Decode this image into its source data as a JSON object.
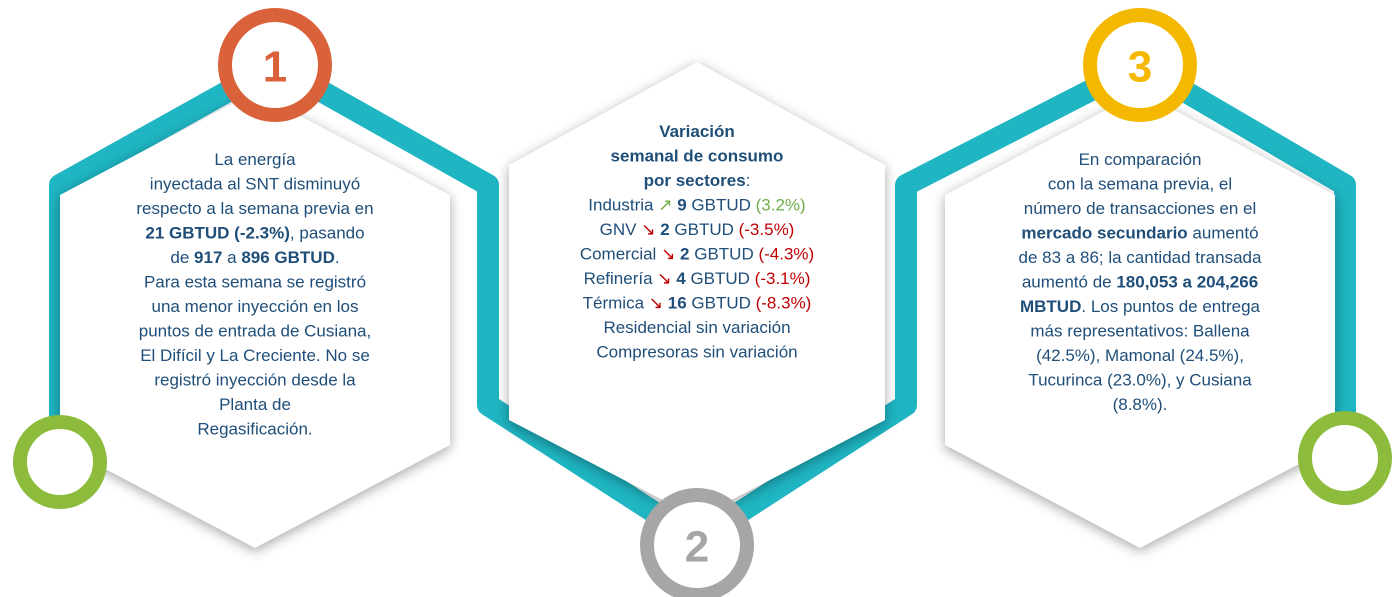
{
  "panels": [
    {
      "number": "1",
      "lines": [
        [
          {
            "text": "La energía"
          }
        ],
        [
          {
            "text": "inyectada al SNT disminuyó"
          }
        ],
        [
          {
            "text": "respecto a la semana previa en"
          }
        ],
        [
          {
            "text": "21 GBTUD (-2.3%)",
            "bold": true
          },
          {
            "text": ", pasando"
          }
        ],
        [
          {
            "text": "de "
          },
          {
            "text": "917",
            "bold": true
          },
          {
            "text": " a "
          },
          {
            "text": "896 GBTUD",
            "bold": true
          },
          {
            "text": "."
          }
        ],
        [
          {
            "text": "Para esta semana se registró"
          }
        ],
        [
          {
            "text": "una menor inyección en los"
          }
        ],
        [
          {
            "text": "puntos de entrada de Cusiana,"
          }
        ],
        [
          {
            "text": "El Difícil y La Creciente. No se"
          }
        ],
        [
          {
            "text": "registró inyección desde la"
          }
        ],
        [
          {
            "text": "Planta de"
          }
        ],
        [
          {
            "text": "Regasificación."
          }
        ]
      ]
    },
    {
      "number": "2",
      "lines": [
        [
          {
            "text": "Variación",
            "bold": true
          }
        ],
        [
          {
            "text": "semanal de consumo",
            "bold": true
          }
        ],
        [
          {
            "text": "por sectores",
            "bold": true
          },
          {
            "text": ":"
          }
        ],
        [
          {
            "text": "Industria "
          },
          {
            "text": "↗",
            "color": "#70ad47"
          },
          {
            "text": " 9",
            "bold": true
          },
          {
            "text": " GBTUD "
          },
          {
            "text": "(3.2%)",
            "color": "#70ad47"
          }
        ],
        [
          {
            "text": "GNV "
          },
          {
            "text": "↘",
            "color": "#c00000"
          },
          {
            "text": " 2",
            "bold": true
          },
          {
            "text": " GBTUD "
          },
          {
            "text": "(-3.5%)",
            "color": "#c00000"
          }
        ],
        [
          {
            "text": "Comercial "
          },
          {
            "text": "↘",
            "color": "#c00000"
          },
          {
            "text": " 2",
            "bold": true
          },
          {
            "text": " GBTUD "
          },
          {
            "text": "(-4.3%)",
            "color": "#c00000"
          }
        ],
        [
          {
            "text": "Refinería "
          },
          {
            "text": "↘",
            "color": "#c00000"
          },
          {
            "text": " 4",
            "bold": true
          },
          {
            "text": " GBTUD "
          },
          {
            "text": "(-3.1%)",
            "color": "#c00000"
          }
        ],
        [
          {
            "text": "Térmica "
          },
          {
            "text": "↘",
            "color": "#c00000"
          },
          {
            "text": " 16",
            "bold": true
          },
          {
            "text": " GBTUD "
          },
          {
            "text": "(-8.3%)",
            "color": "#c00000"
          }
        ],
        [
          {
            "text": "Residencial sin variación"
          }
        ],
        [
          {
            "text": "Compresoras sin variación"
          }
        ]
      ]
    },
    {
      "number": "3",
      "lines": [
        [
          {
            "text": "En comparación"
          }
        ],
        [
          {
            "text": "con la semana previa, el"
          }
        ],
        [
          {
            "text": "número de transacciones en el"
          }
        ],
        [
          {
            "text": "mercado secundario",
            "bold": true
          },
          {
            "text": " aumentó"
          }
        ],
        [
          {
            "text": "de 83 a 86; la cantidad transada"
          }
        ],
        [
          {
            "text": "aumentó de "
          },
          {
            "text": "180,053 a 204,266",
            "bold": true
          }
        ],
        [
          {
            "text": "MBTUD",
            "bold": true
          },
          {
            "text": ". Los puntos de entrega"
          }
        ],
        [
          {
            "text": "más representativos: Ballena"
          }
        ],
        [
          {
            "text": "(42.5%), Mamonal (24.5%),"
          }
        ],
        [
          {
            "text": "Tucurinca (23.0%), y Cusiana"
          }
        ],
        [
          {
            "text": "(8.8%)."
          }
        ]
      ]
    }
  ]
}
